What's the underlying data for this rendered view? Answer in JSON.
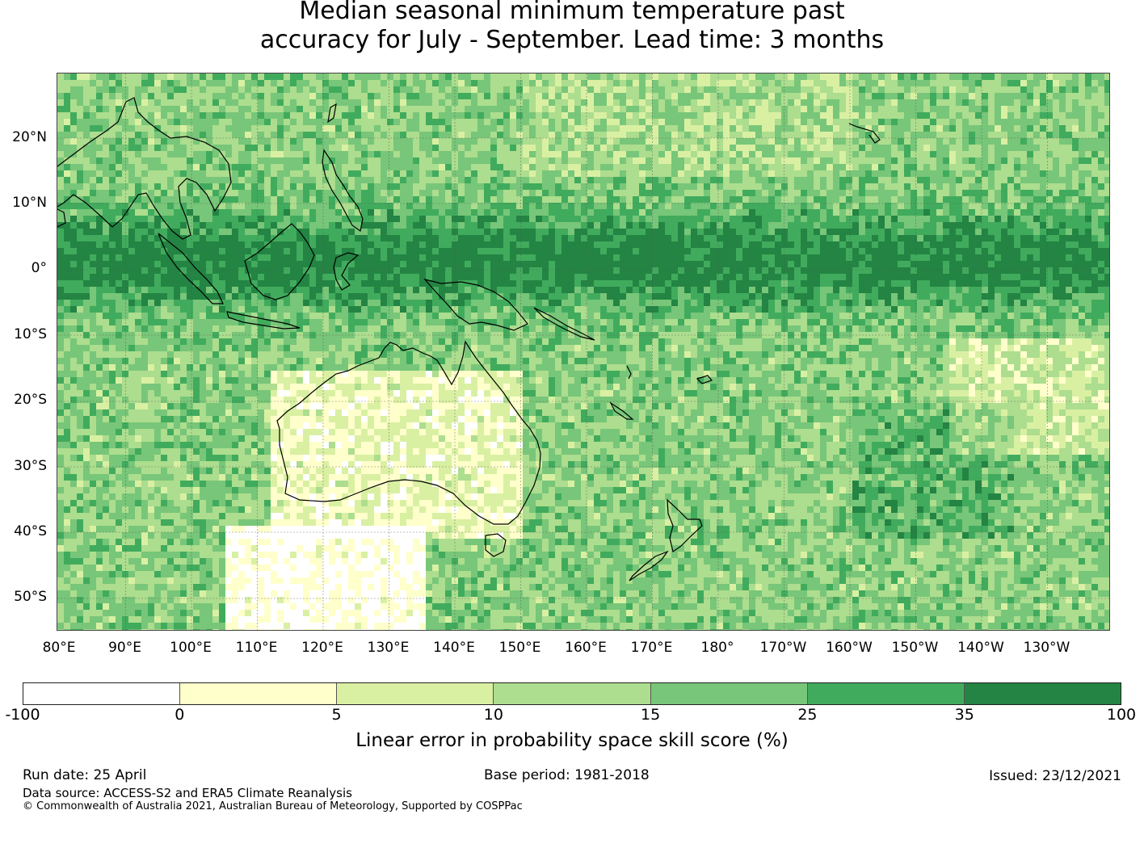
{
  "title": {
    "line1": "Median seasonal minimum temperature past",
    "line2": "accuracy for July - September. Lead time: 3 months"
  },
  "map": {
    "lat_labels": [
      "20°N",
      "10°N",
      "0°",
      "10°S",
      "20°S",
      "30°S",
      "40°S",
      "50°S"
    ],
    "lon_labels": [
      "80°E",
      "90°E",
      "100°E",
      "110°E",
      "120°E",
      "130°E",
      "140°E",
      "150°E",
      "160°E",
      "170°E",
      "180°",
      "170°W",
      "160°W",
      "150°W",
      "140°W",
      "130°W"
    ]
  },
  "colorbar": {
    "ticks": [
      "-100",
      "0",
      "5",
      "10",
      "15",
      "25",
      "35",
      "100"
    ],
    "colors": [
      "#ffffff",
      "#ffffcc",
      "#d9f0a3",
      "#addd8e",
      "#78c679",
      "#41ab5d",
      "#238443"
    ],
    "label": "Linear error in probability space skill score (%)"
  },
  "footer": {
    "run_date": "Run date: 25 April",
    "base_period": "Base period: 1981-2018",
    "issued": "Issued: 23/12/2021",
    "data_source": "Data source: ACCESS-S2 and ERA5 Climate Reanalysis",
    "copyright": "© Commonwealth of Australia 2021, Australian Bureau of Meteorology, Supported by COSPPac"
  }
}
